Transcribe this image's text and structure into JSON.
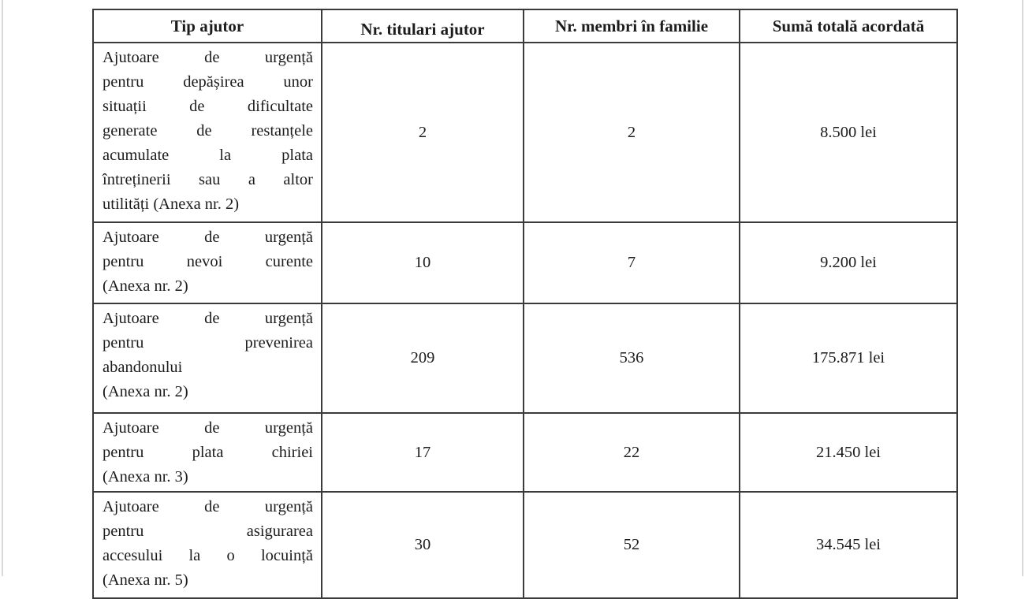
{
  "page": {
    "background": "#ffffff",
    "page_edge_color": "#d9d9d9",
    "text_color": "#1c1c1c",
    "table_border_color": "#3a3a3a"
  },
  "table": {
    "headers": [
      "Tip ajutor",
      "Nr. titulari ajutor",
      "Nr. membri în familie",
      "Sumă totală acordată"
    ],
    "rows": [
      {
        "tip_ajutor": "Ajutoare de urgență pentru depășirea unor situații de dificultate generate de restanțele acumulate la plata întreținerii sau a altor utilități (Anexa nr. 2)",
        "tip_lines": [
          {
            "t": "Ajutoare de urgență",
            "j": true
          },
          {
            "t": "pentru depășirea unor",
            "j": true
          },
          {
            "t": "situații de dificultate",
            "j": true
          },
          {
            "t": "generate de restanțele",
            "j": true
          },
          {
            "t": "acumulate la plata",
            "j": true
          },
          {
            "t": "întreținerii sau a altor",
            "j": true
          },
          {
            "t": "utilități (Anexa nr. 2)",
            "j": false
          }
        ],
        "nr_titulari": "2",
        "nr_membri": "2",
        "suma_totala": "8.500 lei"
      },
      {
        "tip_ajutor": "Ajutoare de urgență pentru nevoi curente (Anexa nr. 2)",
        "tip_lines": [
          {
            "t": "Ajutoare de urgență",
            "j": true
          },
          {
            "t": "pentru nevoi curente",
            "j": true
          },
          {
            "t": "(Anexa nr. 2)",
            "j": false
          }
        ],
        "nr_titulari": "10",
        "nr_membri": "7",
        "suma_totala": "9.200 lei"
      },
      {
        "tip_ajutor": "Ajutoare de urgență pentru prevenirea abandonului (Anexa nr. 2)",
        "tip_lines": [
          {
            "t": "Ajutoare de urgență",
            "j": true
          },
          {
            "t": "pentru prevenirea",
            "j": true
          },
          {
            "t": "abandonului",
            "j": false
          },
          {
            "t": "(Anexa nr. 2)",
            "j": false
          }
        ],
        "nr_titulari": "209",
        "nr_membri": "536",
        "suma_totala": "175.871 lei"
      },
      {
        "tip_ajutor": "Ajutoare de urgență pentru plata chiriei (Anexa nr. 3)",
        "tip_lines": [
          {
            "t": "Ajutoare de urgență",
            "j": true
          },
          {
            "t": "pentru plata chiriei",
            "j": true
          },
          {
            "t": "(Anexa nr. 3)",
            "j": false
          }
        ],
        "nr_titulari": "17",
        "nr_membri": "22",
        "suma_totala": "21.450 lei"
      },
      {
        "tip_ajutor": "Ajutoare de urgență pentru asigurarea accesului la o locuință (Anexa nr. 5)",
        "tip_lines": [
          {
            "t": "Ajutoare de urgență",
            "j": true
          },
          {
            "t": "pentru asigurarea",
            "j": true
          },
          {
            "t": "accesului la o locuință",
            "j": true
          },
          {
            "t": "(Anexa nr. 5)",
            "j": false
          }
        ],
        "nr_titulari": "30",
        "nr_membri": "52",
        "suma_totala": "34.545 lei"
      }
    ]
  }
}
